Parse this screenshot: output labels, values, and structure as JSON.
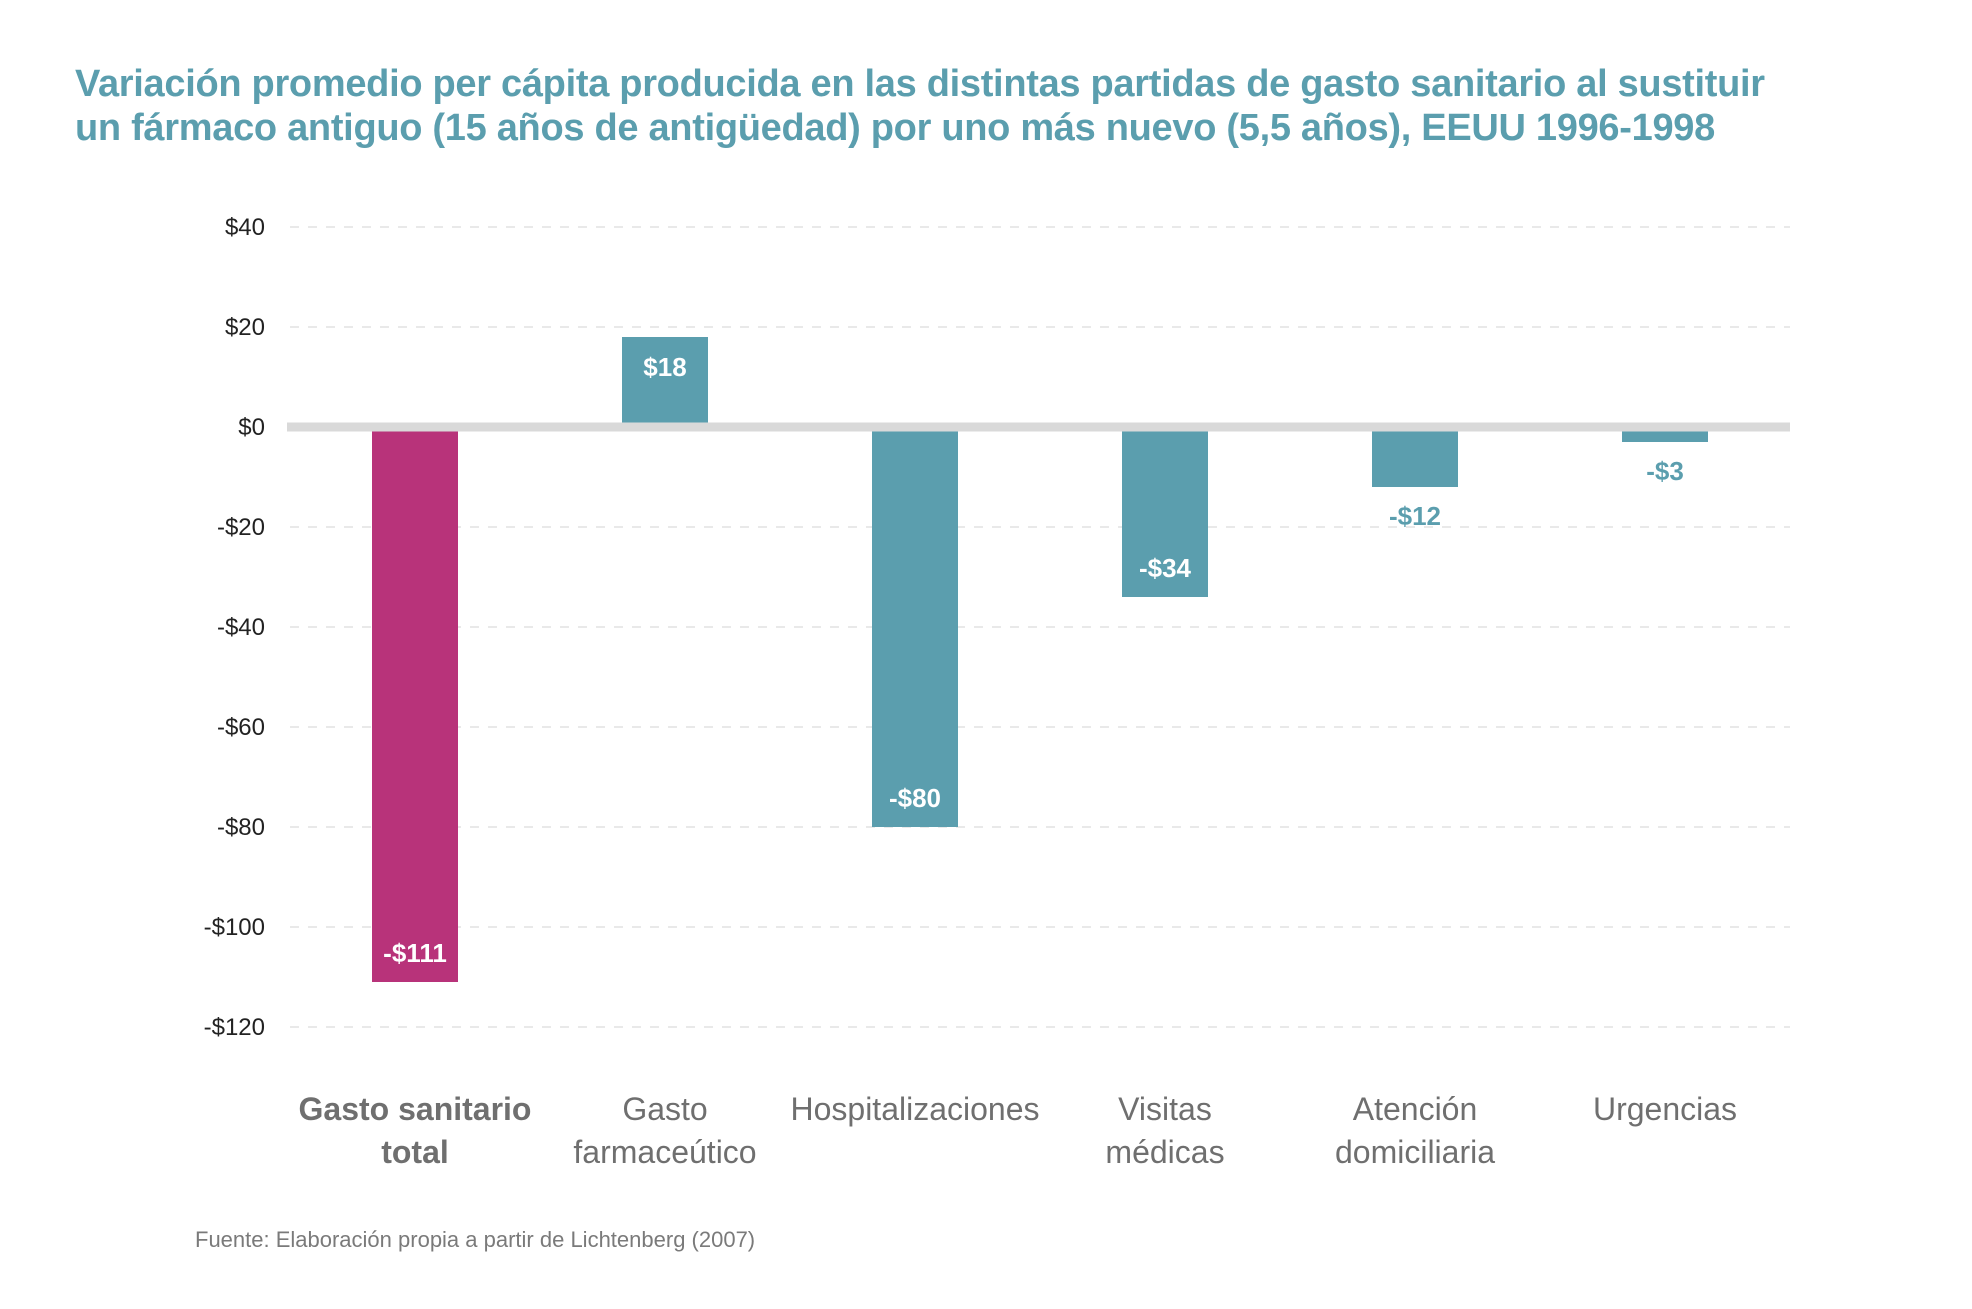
{
  "title_lines": [
    "Variación promedio per cápita producida en las distintas partidas de gasto sanitario al sustituir",
    "un fármaco antiguo (15 años de antigüedad) por uno más nuevo (5,5 años), EEUU 1996-1998"
  ],
  "source": "Fuente: Elaboración propia a partir de Lichtenberg (2007)",
  "colors": {
    "title": "#5b9eae",
    "bar_default": "#5b9eae",
    "bar_highlight": "#b8337a",
    "zero_line": "#d9d9d9",
    "grid": "#e2e2e2"
  },
  "chart_data": {
    "type": "bar",
    "title": "Variación promedio per cápita producida en las distintas partidas de gasto sanitario al sustituir un fármaco antiguo (15 años de antigüedad) por uno más nuevo (5,5 años), EEUU 1996-1998",
    "xlabel": "",
    "ylabel": "",
    "ylim": [
      -120,
      40
    ],
    "yticks": [
      40,
      20,
      0,
      -20,
      -40,
      -60,
      -80,
      -100,
      -120
    ],
    "ytick_labels": [
      "$40",
      "$20",
      "$0",
      "-$20",
      "-$40",
      "-$60",
      "-$80",
      "-$100",
      "-$120"
    ],
    "grid": true,
    "categories": [
      [
        "Gasto sanitario",
        "total"
      ],
      [
        "Gasto",
        "farmaceútico"
      ],
      [
        "Hospitalizaciones"
      ],
      [
        "Visitas",
        "médicas"
      ],
      [
        "Atención",
        "domiciliaria"
      ],
      [
        "Urgencias"
      ]
    ],
    "values": [
      -111,
      18,
      -80,
      -34,
      -12,
      -3
    ],
    "value_labels": [
      "-$111",
      "$18",
      "-$80",
      "-$34",
      "-$12",
      "-$3"
    ],
    "highlight_index": 0
  }
}
